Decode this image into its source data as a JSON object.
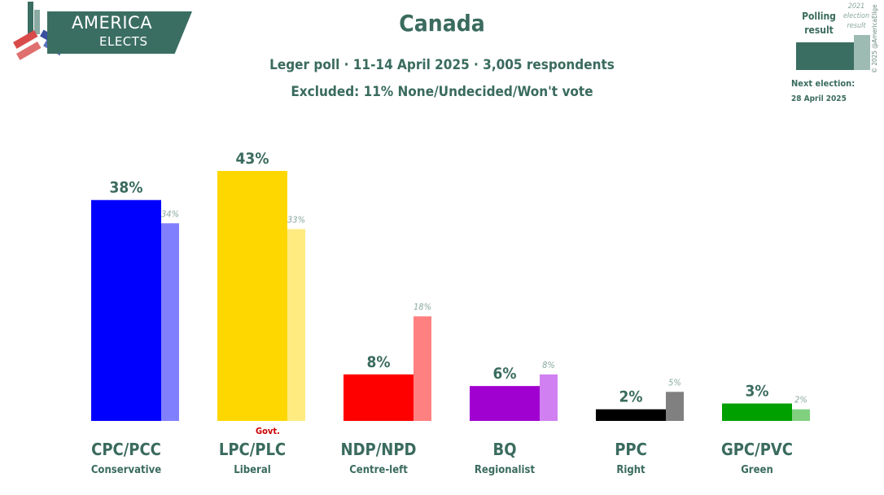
{
  "logo": {
    "line1": "AMERICA",
    "line2": "ELECTS"
  },
  "header": {
    "title": "Canada",
    "subtitle": "Leger poll · 11-14 April 2025 · 3,005 respondents",
    "excluded": "Excluded: 11% None/Undecided/Won't vote"
  },
  "legend": {
    "polling_label": "Polling result",
    "election_label": "2021 election result",
    "next_election_label": "Next election:",
    "next_election_date": "28 April 2025",
    "copyright": "© 2025 @AmericaElige"
  },
  "govt_label": "Govt.",
  "chart_data": {
    "type": "bar",
    "categories": [
      "CPC/PCC",
      "LPC/PLC",
      "NDP/NPD",
      "BQ",
      "PPC",
      "GPC/PVC"
    ],
    "subcategories": [
      "Conservative",
      "Liberal",
      "Centre-left",
      "Regionalist",
      "Right",
      "Green"
    ],
    "series": [
      {
        "name": "Polling result",
        "values": [
          38,
          43,
          8,
          6,
          2,
          3
        ],
        "labels": [
          "38%",
          "43%",
          "8%",
          "6%",
          "2%",
          "3%"
        ]
      },
      {
        "name": "2021 election result",
        "values": [
          34,
          33,
          18,
          8,
          5,
          2
        ],
        "labels": [
          "34%",
          "33%",
          "18%",
          "8%",
          "5%",
          "2%"
        ]
      }
    ],
    "colors": {
      "poll": [
        "#0000ff",
        "#ffd700",
        "#ff0000",
        "#a000d0",
        "#000000",
        "#00a000"
      ],
      "election": [
        "#8080ff",
        "#ffeb80",
        "#ff8080",
        "#d080f0",
        "#808080",
        "#80d080"
      ]
    },
    "ylim": [
      0,
      43
    ]
  }
}
